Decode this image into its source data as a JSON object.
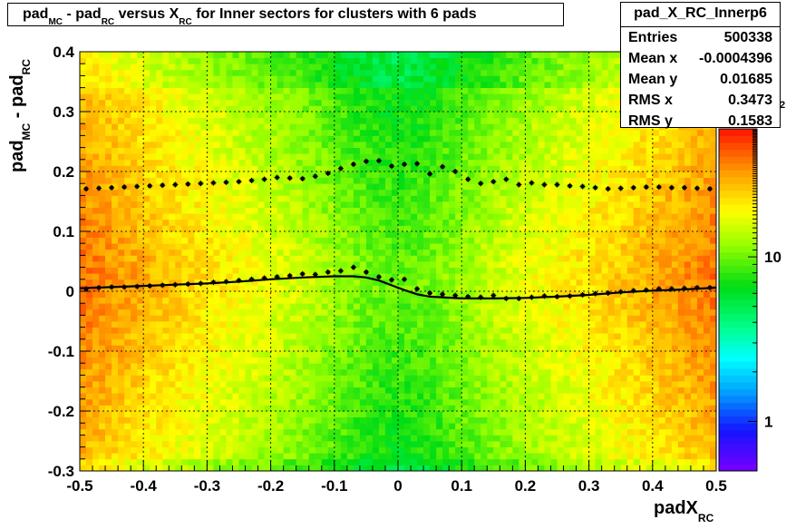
{
  "chart_data": {
    "type": "heatmap",
    "title": {
      "parts": [
        {
          "text": "pad",
          "sub": "MC"
        },
        {
          "text": " - pad",
          "sub": "RC"
        },
        {
          "text": " versus X",
          "sub": "RC"
        },
        {
          "text": " for Inner sectors for clusters with 6 pads",
          "sub": ""
        }
      ]
    },
    "xlabel": {
      "text": "padX",
      "sub": "RC"
    },
    "ylabel": {
      "parts": [
        {
          "text": "pad",
          "sub": "MC"
        },
        {
          "text": " - pad",
          "sub": "RC"
        }
      ]
    },
    "xlim": [
      -0.5,
      0.5
    ],
    "ylim": [
      -0.3,
      0.4
    ],
    "x_ticks": [
      "-0.5",
      "-0.4",
      "-0.3",
      "-0.2",
      "-0.1",
      "0",
      "0.1",
      "0.2",
      "0.3",
      "0.4",
      "0.5"
    ],
    "y_ticks": [
      "-0.3",
      "-0.2",
      "-0.1",
      "0",
      "0.1",
      "0.2",
      "0.3",
      "0.4"
    ],
    "grid": true,
    "z_scale": "log",
    "z_range": [
      0.5,
      60
    ],
    "z_ticks": [
      "1",
      "10"
    ],
    "z_tick_values": [
      1,
      10
    ],
    "z_exponent_label": "2",
    "stats": {
      "name": "pad_X_RC_Innerp6",
      "rows": [
        {
          "label": "Entries",
          "value": "500338"
        },
        {
          "label": "Mean x",
          "value": "-0.0004396"
        },
        {
          "label": "Mean y",
          "value": "0.01685"
        },
        {
          "label": "RMS x",
          "value": "0.3473"
        },
        {
          "label": "RMS y",
          "value": "0.1583"
        }
      ]
    },
    "profiles": [
      {
        "marker": "plus",
        "x": [
          -0.49,
          -0.47,
          -0.45,
          -0.43,
          -0.41,
          -0.39,
          -0.37,
          -0.35,
          -0.33,
          -0.31,
          -0.29,
          -0.27,
          -0.25,
          -0.23,
          -0.21,
          -0.19,
          -0.17,
          -0.15,
          -0.13,
          -0.11,
          -0.09,
          -0.07,
          -0.05,
          -0.03,
          -0.01,
          0.01,
          0.03,
          0.05,
          0.07,
          0.09,
          0.11,
          0.13,
          0.15,
          0.17,
          0.19,
          0.21,
          0.23,
          0.25,
          0.27,
          0.29,
          0.31,
          0.33,
          0.35,
          0.37,
          0.39,
          0.41,
          0.43,
          0.45,
          0.47,
          0.49
        ],
        "y": [
          0.004,
          0.006,
          0.007,
          0.007,
          0.008,
          0.009,
          0.01,
          0.011,
          0.012,
          0.013,
          0.015,
          0.016,
          0.018,
          0.02,
          0.022,
          0.024,
          0.026,
          0.029,
          0.028,
          0.032,
          0.034,
          0.04,
          0.032,
          0.024,
          0.019,
          0.02,
          0.004,
          -0.003,
          -0.005,
          -0.007,
          -0.009,
          -0.01,
          -0.007,
          -0.012,
          -0.012,
          -0.01,
          -0.008,
          -0.009,
          -0.008,
          -0.006,
          -0.004,
          -0.003,
          -0.001,
          0.001,
          0.002,
          0.004,
          0.004,
          0.005,
          0.006,
          0.006
        ]
      },
      {
        "marker": "plus",
        "x": [
          -0.49,
          -0.47,
          -0.45,
          -0.43,
          -0.41,
          -0.39,
          -0.37,
          -0.35,
          -0.33,
          -0.31,
          -0.29,
          -0.27,
          -0.25,
          -0.23,
          -0.21,
          -0.19,
          -0.17,
          -0.15,
          -0.13,
          -0.11,
          -0.09,
          -0.07,
          -0.05,
          -0.03,
          -0.01,
          0.01,
          0.03,
          0.05,
          0.07,
          0.09,
          0.11,
          0.13,
          0.15,
          0.17,
          0.19,
          0.21,
          0.23,
          0.25,
          0.27,
          0.29,
          0.31,
          0.33,
          0.35,
          0.37,
          0.39,
          0.41,
          0.43,
          0.45,
          0.47,
          0.49
        ],
        "y": [
          0.171,
          0.172,
          0.173,
          0.174,
          0.175,
          0.176,
          0.177,
          0.178,
          0.179,
          0.18,
          0.181,
          0.182,
          0.183,
          0.185,
          0.187,
          0.19,
          0.189,
          0.188,
          0.192,
          0.197,
          0.205,
          0.212,
          0.217,
          0.218,
          0.209,
          0.212,
          0.213,
          0.196,
          0.208,
          0.2,
          0.187,
          0.18,
          0.183,
          0.187,
          0.178,
          0.181,
          0.178,
          0.178,
          0.176,
          0.175,
          0.173,
          0.171,
          0.172,
          0.173,
          0.174,
          0.174,
          0.173,
          0.173,
          0.172,
          0.171
        ]
      }
    ],
    "fit_curve": {
      "x": [
        -0.5,
        -0.45,
        -0.4,
        -0.35,
        -0.3,
        -0.25,
        -0.2,
        -0.15,
        -0.1,
        -0.07,
        -0.05,
        -0.03,
        -0.01,
        0.01,
        0.03,
        0.05,
        0.1,
        0.15,
        0.2,
        0.25,
        0.3,
        0.35,
        0.4,
        0.45,
        0.5
      ],
      "y": [
        0.005,
        0.007,
        0.009,
        0.011,
        0.013,
        0.016,
        0.02,
        0.023,
        0.025,
        0.025,
        0.023,
        0.018,
        0.01,
        0.002,
        -0.005,
        -0.009,
        -0.012,
        -0.012,
        -0.011,
        -0.009,
        -0.006,
        -0.002,
        0.001,
        0.003,
        0.006
      ]
    }
  }
}
